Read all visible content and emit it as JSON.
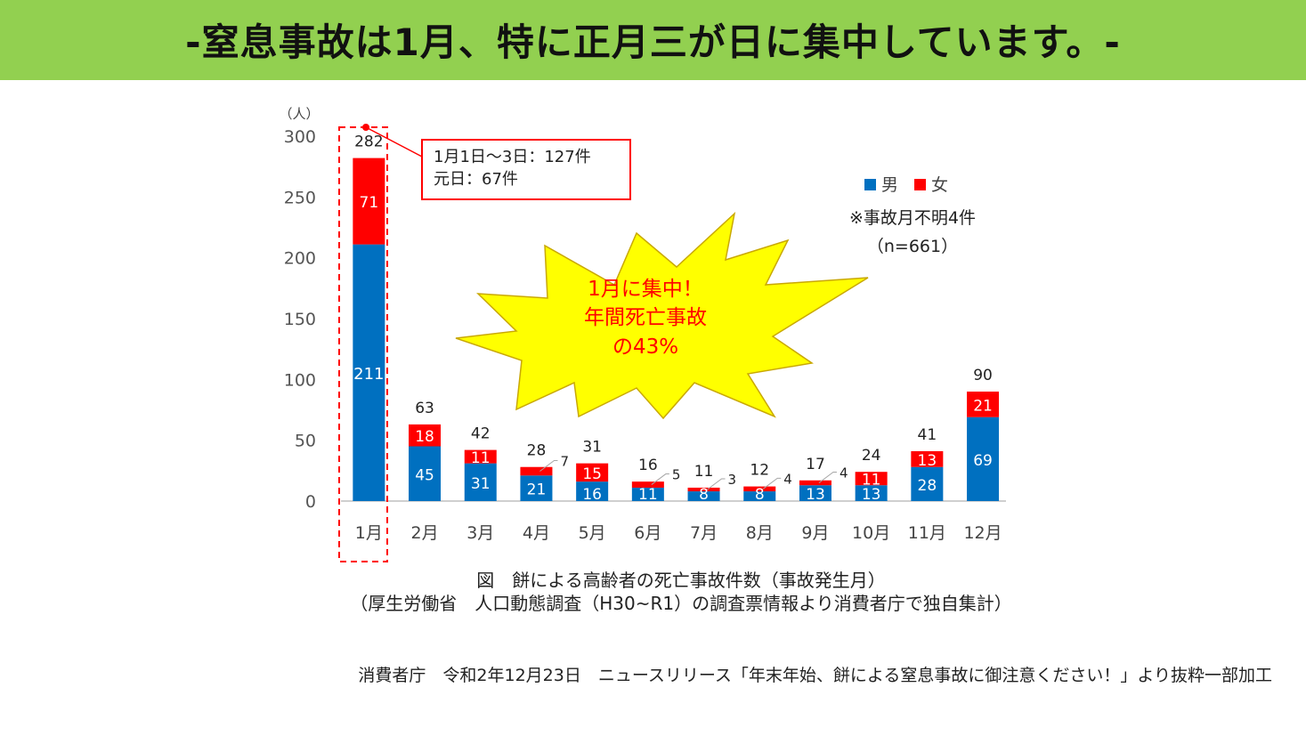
{
  "header": {
    "title": "-窒息事故は1月、特に正月三が日に集中しています。-"
  },
  "chart_data": {
    "type": "bar",
    "stacked": true,
    "categories": [
      "1月",
      "2月",
      "3月",
      "4月",
      "5月",
      "6月",
      "7月",
      "8月",
      "9月",
      "10月",
      "11月",
      "12月"
    ],
    "series": [
      {
        "name": "男",
        "color": "#0070c0",
        "values": [
          211,
          45,
          31,
          21,
          16,
          11,
          8,
          8,
          13,
          13,
          28,
          69
        ]
      },
      {
        "name": "女",
        "color": "#ff0000",
        "values": [
          71,
          18,
          11,
          7,
          15,
          5,
          3,
          4,
          4,
          11,
          13,
          21
        ]
      }
    ],
    "totals": [
      282,
      63,
      42,
      28,
      31,
      16,
      11,
      12,
      17,
      24,
      41,
      90
    ],
    "ylabel": "（人）",
    "ylim": [
      0,
      300
    ],
    "yticks": [
      0,
      50,
      100,
      150,
      200,
      250,
      300
    ],
    "grid": false,
    "legend_position": "top-right",
    "notes": [
      "※事故月不明4件",
      "（n=661）"
    ],
    "callout": {
      "line1": "1月1日～3日：127件",
      "line2": "元日：67件"
    },
    "starburst": {
      "lines": [
        "1月に集中！",
        "年間死亡事故",
        "の43%"
      ],
      "fill": "#ffff00",
      "text_color": "#ff0000"
    }
  },
  "caption": {
    "line1": "図　餅による高齢者の死亡事故件数（事故発生月）",
    "line2": "（厚生労働省　人口動態調査（H30~R1）の調査票情報より消費者庁で独自集計）"
  },
  "source": "消費者庁　令和2年12月23日　ニュースリリース「年末年始、餅による窒息事故に御注意ください！」より抜粋一部加工"
}
